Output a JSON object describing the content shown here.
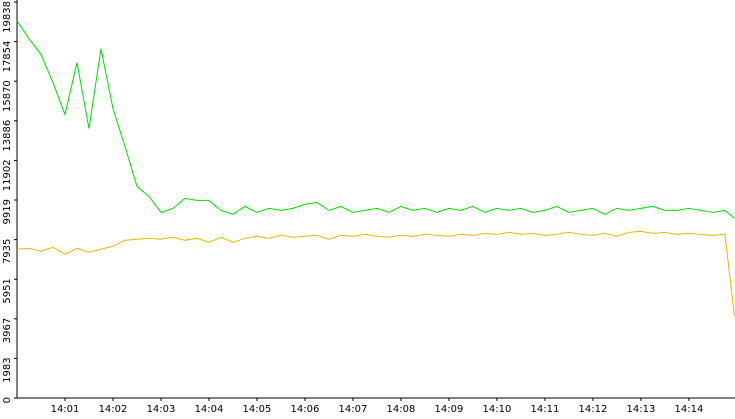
{
  "chart_data": {
    "type": "line",
    "x": [
      0,
      0.25,
      0.5,
      0.75,
      1,
      1.25,
      1.5,
      1.75,
      2,
      2.25,
      2.5,
      2.75,
      3,
      3.25,
      3.5,
      3.75,
      4,
      4.25,
      4.5,
      4.75,
      5,
      5.25,
      5.5,
      5.75,
      6,
      6.25,
      6.5,
      6.75,
      7,
      7.25,
      7.5,
      7.75,
      8,
      8.25,
      8.5,
      8.75,
      9,
      9.25,
      9.5,
      9.75,
      10,
      10.25,
      10.5,
      10.75,
      11,
      11.25,
      11.5,
      11.75,
      12,
      12.25,
      12.5,
      12.75,
      13,
      13.25,
      13.5,
      13.75,
      14,
      14.25,
      14.5,
      14.75,
      14.95
    ],
    "series": [
      {
        "color": "#00dd00",
        "values": [
          18900,
          18000,
          17200,
          15800,
          14200,
          16800,
          13500,
          17500,
          14500,
          12600,
          10600,
          10100,
          9300,
          9500,
          10000,
          9900,
          9900,
          9400,
          9200,
          9600,
          9300,
          9500,
          9400,
          9500,
          9700,
          9800,
          9400,
          9600,
          9300,
          9400,
          9500,
          9300,
          9600,
          9400,
          9500,
          9300,
          9500,
          9400,
          9600,
          9300,
          9500,
          9400,
          9500,
          9300,
          9400,
          9600,
          9300,
          9400,
          9500,
          9200,
          9500,
          9400,
          9500,
          9600,
          9400,
          9400,
          9500,
          9400,
          9300,
          9400,
          9000
        ]
      },
      {
        "color": "#e8b800",
        "values": [
          7450,
          7500,
          7350,
          7550,
          7200,
          7500,
          7300,
          7450,
          7600,
          7900,
          7950,
          8000,
          7950,
          8050,
          7900,
          8000,
          7800,
          8050,
          7800,
          8000,
          8100,
          8000,
          8150,
          8050,
          8100,
          8150,
          7950,
          8150,
          8100,
          8200,
          8100,
          8050,
          8150,
          8100,
          8200,
          8150,
          8100,
          8200,
          8150,
          8250,
          8200,
          8300,
          8200,
          8250,
          8150,
          8200,
          8300,
          8200,
          8150,
          8250,
          8100,
          8300,
          8350,
          8250,
          8300,
          8200,
          8250,
          8200,
          8150,
          8200,
          4100
        ]
      }
    ],
    "xlim": [
      0,
      14.96
    ],
    "xticks": [
      {
        "value": 1,
        "label": "14:01"
      },
      {
        "value": 2,
        "label": "14:02"
      },
      {
        "value": 3,
        "label": "14:03"
      },
      {
        "value": 4,
        "label": "14:04"
      },
      {
        "value": 5,
        "label": "14:05"
      },
      {
        "value": 6,
        "label": "14:06"
      },
      {
        "value": 7,
        "label": "14:07"
      },
      {
        "value": 8,
        "label": "14:08"
      },
      {
        "value": 9,
        "label": "14:09"
      },
      {
        "value": 10,
        "label": "14:10"
      },
      {
        "value": 11,
        "label": "14:11"
      },
      {
        "value": 12,
        "label": "14:12"
      },
      {
        "value": 13,
        "label": "14:13"
      },
      {
        "value": 14,
        "label": "14:14"
      }
    ],
    "ylim": [
      0,
      19838
    ],
    "yticks": [
      0,
      1983,
      3967,
      5951,
      7935,
      9919,
      11902,
      13886,
      15870,
      17854,
      19838
    ]
  }
}
